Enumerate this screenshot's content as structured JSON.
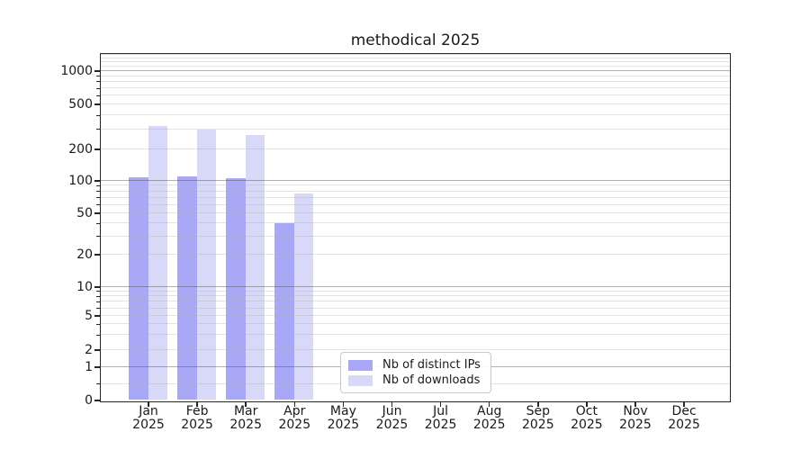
{
  "page": {
    "background": "#ffffff"
  },
  "chart_data": {
    "type": "bar",
    "title": "methodical 2025",
    "xlabel": "",
    "ylabel": "",
    "yscale": "symlog",
    "ylim": [
      0,
      1450
    ],
    "grid": "both",
    "categories": [
      "Jan 2025",
      "Feb 2025",
      "Mar 2025",
      "Apr 2025",
      "May 2025",
      "Jun 2025",
      "Jul 2025",
      "Aug 2025",
      "Sep 2025",
      "Oct 2025",
      "Nov 2025",
      "Dec 2025"
    ],
    "x_tick_labels": [
      {
        "line1": "Jan",
        "line2": "2025"
      },
      {
        "line1": "Feb",
        "line2": "2025"
      },
      {
        "line1": "Mar",
        "line2": "2025"
      },
      {
        "line1": "Apr",
        "line2": "2025"
      },
      {
        "line1": "May",
        "line2": "2025"
      },
      {
        "line1": "Jun",
        "line2": "2025"
      },
      {
        "line1": "Jul",
        "line2": "2025"
      },
      {
        "line1": "Aug",
        "line2": "2025"
      },
      {
        "line1": "Sep",
        "line2": "2025"
      },
      {
        "line1": "Oct",
        "line2": "2025"
      },
      {
        "line1": "Nov",
        "line2": "2025"
      },
      {
        "line1": "Dec",
        "line2": "2025"
      }
    ],
    "series": [
      {
        "name": "Nb of distinct IPs",
        "color": "#a8a8f6",
        "values": [
          108,
          110,
          106,
          40,
          0,
          0,
          0,
          0,
          0,
          0,
          0,
          0
        ]
      },
      {
        "name": "Nb of downloads",
        "color": "#d8d8f8",
        "values": [
          320,
          295,
          265,
          75,
          0,
          0,
          0,
          0,
          0,
          0,
          0,
          0
        ]
      }
    ],
    "yticks": [
      0,
      1,
      2,
      5,
      10,
      20,
      50,
      100,
      200,
      500,
      1000
    ],
    "ytick_labels": [
      "0",
      "1",
      "2",
      "5",
      "10",
      "20",
      "50",
      "100",
      "200",
      "500",
      "1000"
    ],
    "major_gridlines": [
      1,
      10,
      100,
      1000
    ],
    "minor_gridlines": [
      0.5,
      2,
      3,
      4,
      5,
      6,
      7,
      8,
      9,
      20,
      30,
      40,
      50,
      60,
      70,
      80,
      90,
      200,
      300,
      400,
      500,
      600,
      700,
      800,
      900,
      1100,
      1200,
      1300,
      1400
    ],
    "legend": {
      "position": "lower center",
      "entries": [
        "Nb of distinct IPs",
        "Nb of downloads"
      ]
    },
    "colors": {
      "distinct_ips_bar": "#a8a8f6",
      "downloads_bar": "#d8d8f8",
      "major_grid": "#afafaf",
      "minor_grid": "#e7e7e7",
      "spine": "#262626",
      "text": "#1a1a1a"
    }
  }
}
